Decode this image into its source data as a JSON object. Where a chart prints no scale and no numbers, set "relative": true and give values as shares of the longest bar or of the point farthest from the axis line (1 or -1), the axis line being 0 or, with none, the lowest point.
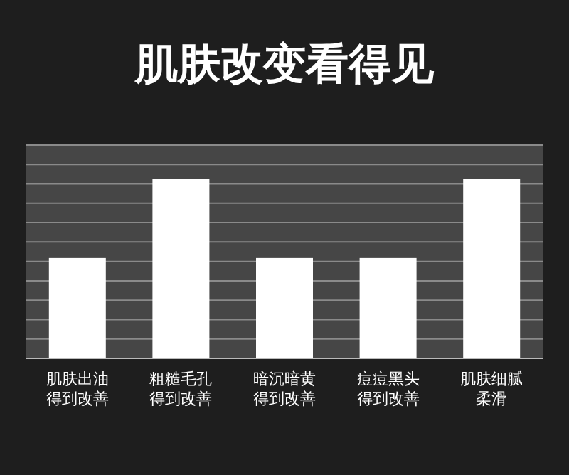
{
  "chart_data": {
    "type": "bar",
    "title": "肌肤改变看得见",
    "relative": true,
    "grid": true,
    "color": "#ffffff",
    "categories": [
      "肌肤出油得到改善",
      "粗糙毛孔得到改善",
      "暗沉暗黄得到改善",
      "痘痘黑头得到改善",
      "肌肤细腻柔滑"
    ],
    "values": [
      0.56,
      1,
      0.56,
      0.56,
      1
    ]
  }
}
